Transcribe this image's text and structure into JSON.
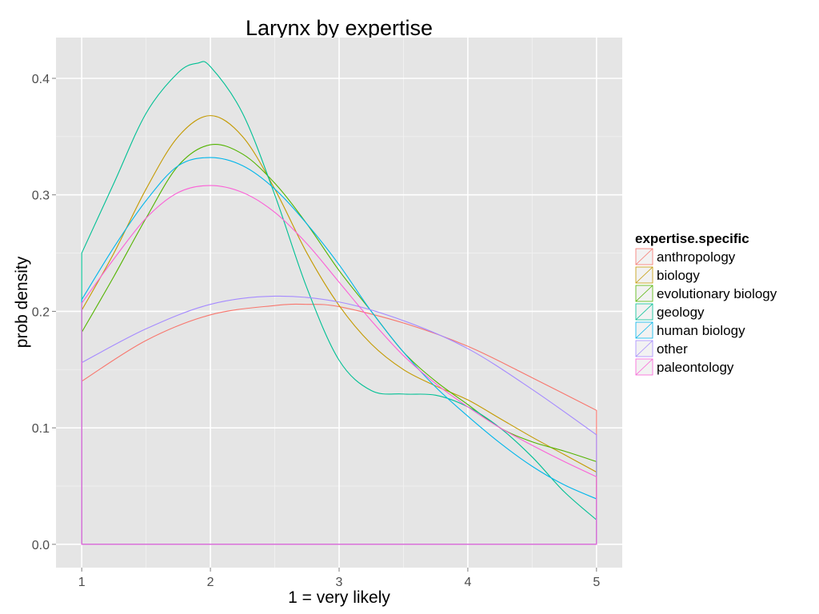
{
  "chart_data": {
    "type": "line",
    "title": "Larynx  by expertise",
    "xlabel": "1 = very likely",
    "ylabel": "prob density",
    "xlim": [
      0.8,
      5.2
    ],
    "ylim": [
      -0.02,
      0.435
    ],
    "x_ticks": [
      1,
      2,
      3,
      4,
      5
    ],
    "x_tick_labels": [
      "1",
      "2",
      "3",
      "4",
      "5"
    ],
    "y_ticks": [
      0.0,
      0.1,
      0.2,
      0.3,
      0.4
    ],
    "y_tick_labels": [
      "0.0",
      "0.1",
      "0.2",
      "0.3",
      "0.4"
    ],
    "grid": true,
    "legend": {
      "title": "expertise.specific",
      "position": "right"
    },
    "series": [
      {
        "name": "anthropology",
        "color": "#F8766D",
        "x": [
          1,
          1.5,
          2,
          2.5,
          2.75,
          3,
          3.5,
          4,
          4.5,
          5
        ],
        "y": [
          0.14,
          0.175,
          0.197,
          0.205,
          0.206,
          0.204,
          0.19,
          0.17,
          0.143,
          0.115
        ]
      },
      {
        "name": "biology",
        "color": "#C49A00",
        "x": [
          1,
          1.25,
          1.5,
          1.75,
          2,
          2.25,
          2.5,
          2.75,
          3,
          3.25,
          3.5,
          3.75,
          4,
          4.25,
          4.5,
          4.75,
          5
        ],
        "y": [
          0.201,
          0.25,
          0.305,
          0.35,
          0.368,
          0.35,
          0.305,
          0.25,
          0.205,
          0.172,
          0.15,
          0.136,
          0.124,
          0.108,
          0.092,
          0.077,
          0.062
        ]
      },
      {
        "name": "evolutionary biology",
        "color": "#53B400",
        "x": [
          1,
          1.25,
          1.5,
          1.75,
          2,
          2.25,
          2.5,
          2.75,
          3,
          3.25,
          3.5,
          3.75,
          4,
          4.25,
          4.5,
          4.75,
          5
        ],
        "y": [
          0.182,
          0.23,
          0.28,
          0.325,
          0.343,
          0.335,
          0.31,
          0.275,
          0.235,
          0.2,
          0.165,
          0.14,
          0.12,
          0.1,
          0.088,
          0.08,
          0.071
        ]
      },
      {
        "name": "geology",
        "color": "#00C094",
        "x": [
          1,
          1.25,
          1.5,
          1.75,
          1.9,
          2,
          2.25,
          2.5,
          2.75,
          3,
          3.25,
          3.5,
          3.75,
          4,
          4.25,
          4.5,
          4.75,
          5
        ],
        "y": [
          0.25,
          0.31,
          0.37,
          0.405,
          0.413,
          0.41,
          0.37,
          0.3,
          0.22,
          0.158,
          0.132,
          0.129,
          0.128,
          0.118,
          0.1,
          0.075,
          0.045,
          0.021
        ]
      },
      {
        "name": "human biology",
        "color": "#00B6EB",
        "x": [
          1,
          1.25,
          1.5,
          1.75,
          2,
          2.25,
          2.5,
          2.75,
          3,
          3.25,
          3.5,
          3.75,
          4,
          4.25,
          4.5,
          4.75,
          5
        ],
        "y": [
          0.21,
          0.255,
          0.295,
          0.325,
          0.332,
          0.325,
          0.305,
          0.275,
          0.24,
          0.2,
          0.165,
          0.135,
          0.11,
          0.087,
          0.067,
          0.051,
          0.039
        ]
      },
      {
        "name": "other",
        "color": "#A58AFF",
        "x": [
          1,
          1.5,
          2,
          2.5,
          3,
          3.5,
          4,
          4.5,
          5
        ],
        "y": [
          0.156,
          0.185,
          0.206,
          0.213,
          0.208,
          0.192,
          0.168,
          0.133,
          0.094
        ]
      },
      {
        "name": "paleontology",
        "color": "#FB61D7",
        "x": [
          1,
          1.25,
          1.5,
          1.75,
          2,
          2.25,
          2.5,
          2.75,
          3,
          3.25,
          3.5,
          3.75,
          4,
          4.25,
          4.5,
          4.75,
          5
        ],
        "y": [
          0.207,
          0.245,
          0.28,
          0.302,
          0.308,
          0.302,
          0.285,
          0.258,
          0.225,
          0.192,
          0.162,
          0.138,
          0.118,
          0.1,
          0.085,
          0.071,
          0.058
        ]
      }
    ]
  }
}
